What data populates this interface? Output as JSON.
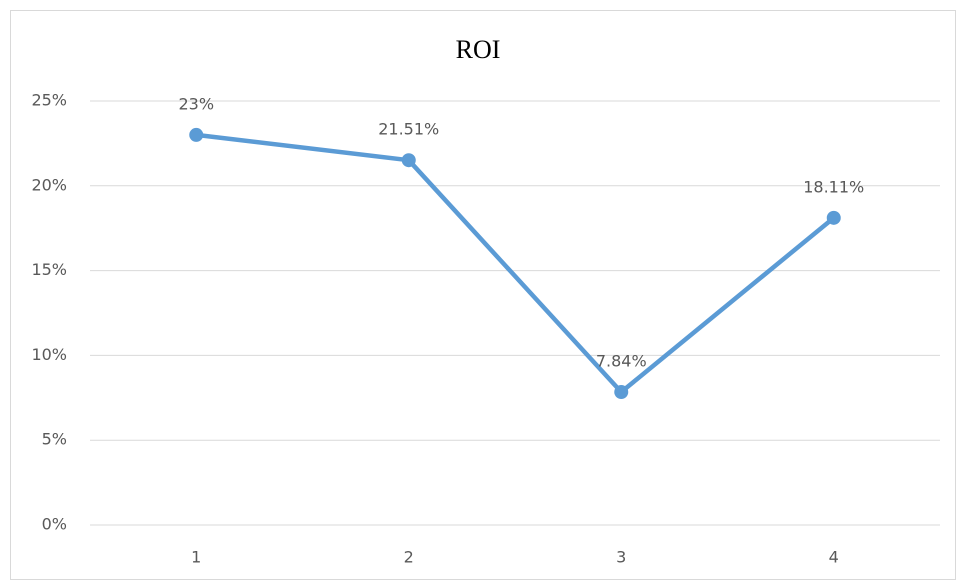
{
  "chart_data": {
    "type": "line",
    "title": "ROI",
    "categories": [
      "1",
      "2",
      "3",
      "4"
    ],
    "series": [
      {
        "name": "ROI",
        "color": "#5b9bd5",
        "values": [
          23,
          21.51,
          7.84,
          18.11
        ],
        "value_labels": [
          "23%",
          "21.51%",
          "7.84%",
          "18.11%"
        ]
      }
    ],
    "ylim": [
      0,
      25
    ],
    "yticks": [
      {
        "value": 0,
        "label": "0%"
      },
      {
        "value": 5,
        "label": "5%"
      },
      {
        "value": 10,
        "label": "10%"
      },
      {
        "value": 15,
        "label": "15%"
      },
      {
        "value": 20,
        "label": "20%"
      },
      {
        "value": 25,
        "label": "25%"
      }
    ],
    "grid": true
  }
}
